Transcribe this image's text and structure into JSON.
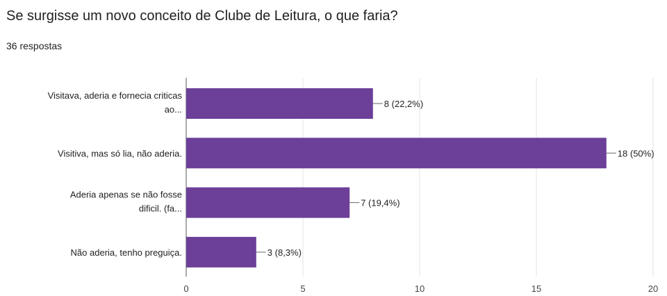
{
  "question": {
    "title": "Se surgisse um novo conceito de Clube de Leitura, o que faria?",
    "responses": "36 respostas"
  },
  "colors": {
    "bar": "#6c3f99",
    "grid": "#e3e3e3",
    "axis": "#555555"
  },
  "chart_data": {
    "type": "bar",
    "orientation": "horizontal",
    "categories": [
      [
        "Visitava, aderia e fornecia criticas",
        "ao..."
      ],
      [
        "Visitiva, mas só lia, não aderia."
      ],
      [
        "Aderia apenas se não fosse",
        "dificil. (fa..."
      ],
      [
        "Não aderia, tenho preguiça."
      ]
    ],
    "values": [
      8,
      18,
      7,
      3
    ],
    "data_labels": [
      "8 (22,2%)",
      "18 (50%)",
      "7 (19,4%)",
      "3 (8,3%)"
    ],
    "xlim": [
      0,
      20
    ],
    "xticks": [
      0,
      5,
      10,
      15,
      20
    ],
    "grid": true
  }
}
